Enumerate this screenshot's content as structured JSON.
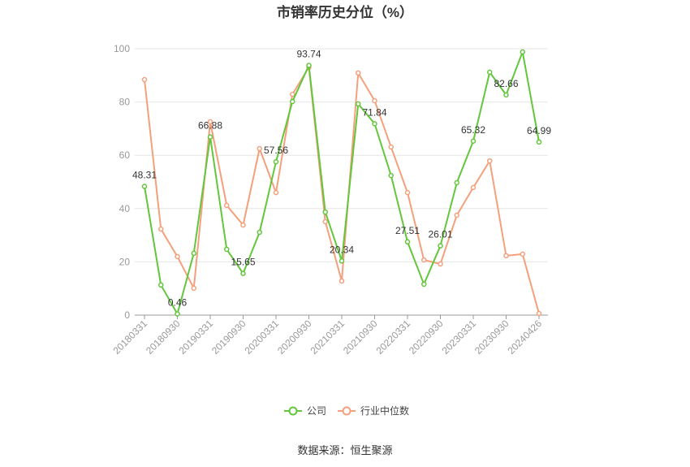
{
  "chart_data": {
    "type": "line",
    "title": "市销率历史分位（%）",
    "source": "数据来源：恒生聚源",
    "x_tick_labels": [
      "20180331",
      "20180930",
      "20190331",
      "20190930",
      "20200331",
      "20200930",
      "20210331",
      "20210930",
      "20220331",
      "20220930",
      "20230331",
      "20230930",
      "20240426"
    ],
    "y_ticks": [
      0,
      20,
      40,
      60,
      80,
      100
    ],
    "ylim": [
      0,
      100
    ],
    "grid": true,
    "legend": "bottom-center",
    "series": [
      {
        "name": "公司",
        "color": "#63c63c",
        "values": [
          48.31,
          11.3,
          0.46,
          23.2,
          66.88,
          24.7,
          15.65,
          31.1,
          57.56,
          80.2,
          93.74,
          38.7,
          20.34,
          79.3,
          71.84,
          52.4,
          27.51,
          11.6,
          26.01,
          49.7,
          65.32,
          91.2,
          82.66,
          98.8,
          64.99
        ]
      },
      {
        "name": "行业中位数",
        "color": "#f4a07c",
        "values": [
          88.4,
          32.3,
          22.0,
          10.1,
          72.6,
          41.2,
          33.8,
          62.5,
          46.0,
          82.9,
          93.0,
          35.1,
          12.8,
          90.9,
          80.5,
          63.1,
          46.0,
          20.7,
          19.2,
          37.5,
          47.9,
          57.9,
          22.3,
          22.9,
          0.6
        ]
      }
    ]
  }
}
